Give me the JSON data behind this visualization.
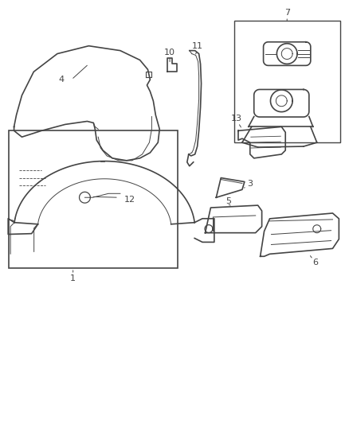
{
  "background_color": "#ffffff",
  "line_color": "#444444",
  "label_color": "#444444",
  "fig_width": 4.39,
  "fig_height": 5.33,
  "dpi": 100
}
